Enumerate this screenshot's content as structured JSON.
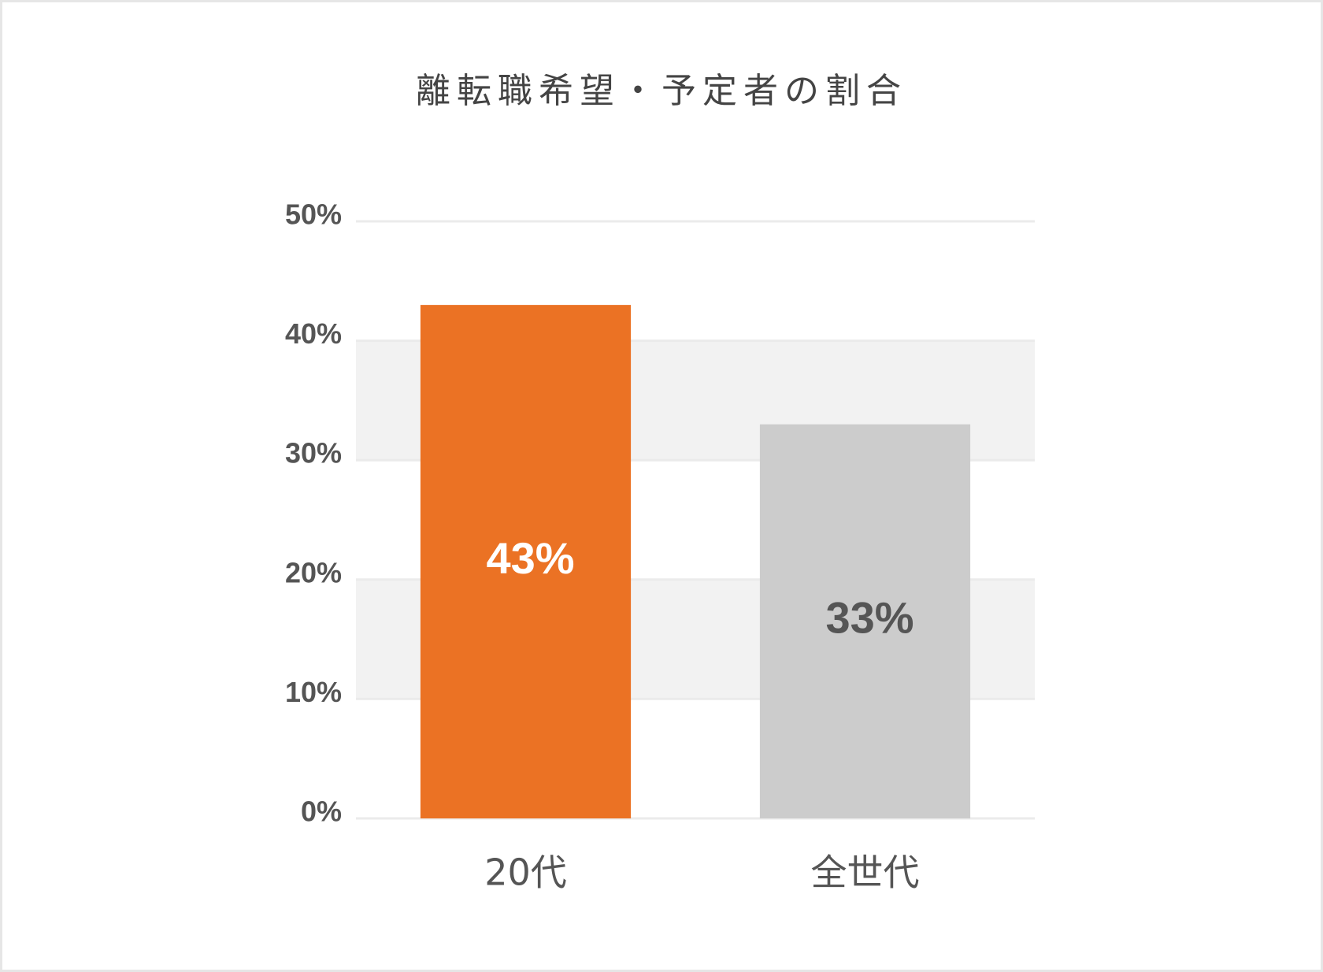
{
  "chart_data": {
    "type": "bar",
    "title": "離転職希望・予定者の割合",
    "categories": [
      "20代",
      "全世代"
    ],
    "values": [
      43,
      33
    ],
    "value_labels": [
      "43%",
      "33%"
    ],
    "colors": [
      "#eb7224",
      "#cccccc"
    ],
    "value_label_colors": [
      "#ffffff",
      "#555555"
    ],
    "ylim": [
      0,
      50
    ],
    "yticks": [
      {
        "value": 0,
        "label": "0%"
      },
      {
        "value": 10,
        "label": "10%"
      },
      {
        "value": 20,
        "label": "20%"
      },
      {
        "value": 30,
        "label": "30%"
      },
      {
        "value": 40,
        "label": "40%"
      },
      {
        "value": 50,
        "label": "50%"
      }
    ],
    "grid": true
  }
}
